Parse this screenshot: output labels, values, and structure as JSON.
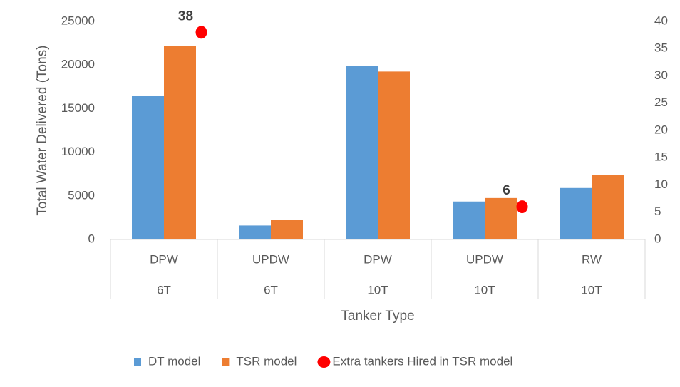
{
  "chart_data": {
    "type": "bar",
    "y_label": "Total Water Delivered  (Tons)",
    "x_label": "Tanker Type",
    "categories": [
      [
        "DPW",
        "6T"
      ],
      [
        "UPDW",
        "6T"
      ],
      [
        "DPW",
        "10T"
      ],
      [
        "UPDW",
        "10T"
      ],
      [
        "RW",
        "10T"
      ]
    ],
    "series": [
      {
        "name": "DT model",
        "color": "#5b9bd5",
        "values": [
          16500,
          1600,
          19900,
          4350,
          5900
        ]
      },
      {
        "name": "TSR model",
        "color": "#ed7d31",
        "values": [
          22200,
          2250,
          19250,
          4750,
          7400
        ]
      },
      {
        "name": "Extra tankers Hired in TSR model",
        "color": "#ff0000",
        "type": "scatter",
        "axis": "y2",
        "values": [
          38,
          null,
          null,
          6,
          null
        ]
      }
    ],
    "ylim": [
      0,
      25000
    ],
    "yticks": [
      0,
      5000,
      10000,
      15000,
      20000,
      25000
    ],
    "y2lim": [
      0,
      40
    ],
    "y2ticks": [
      0,
      5,
      10,
      15,
      20,
      25,
      30,
      35,
      40
    ],
    "legend": "bottom",
    "grid": false
  }
}
